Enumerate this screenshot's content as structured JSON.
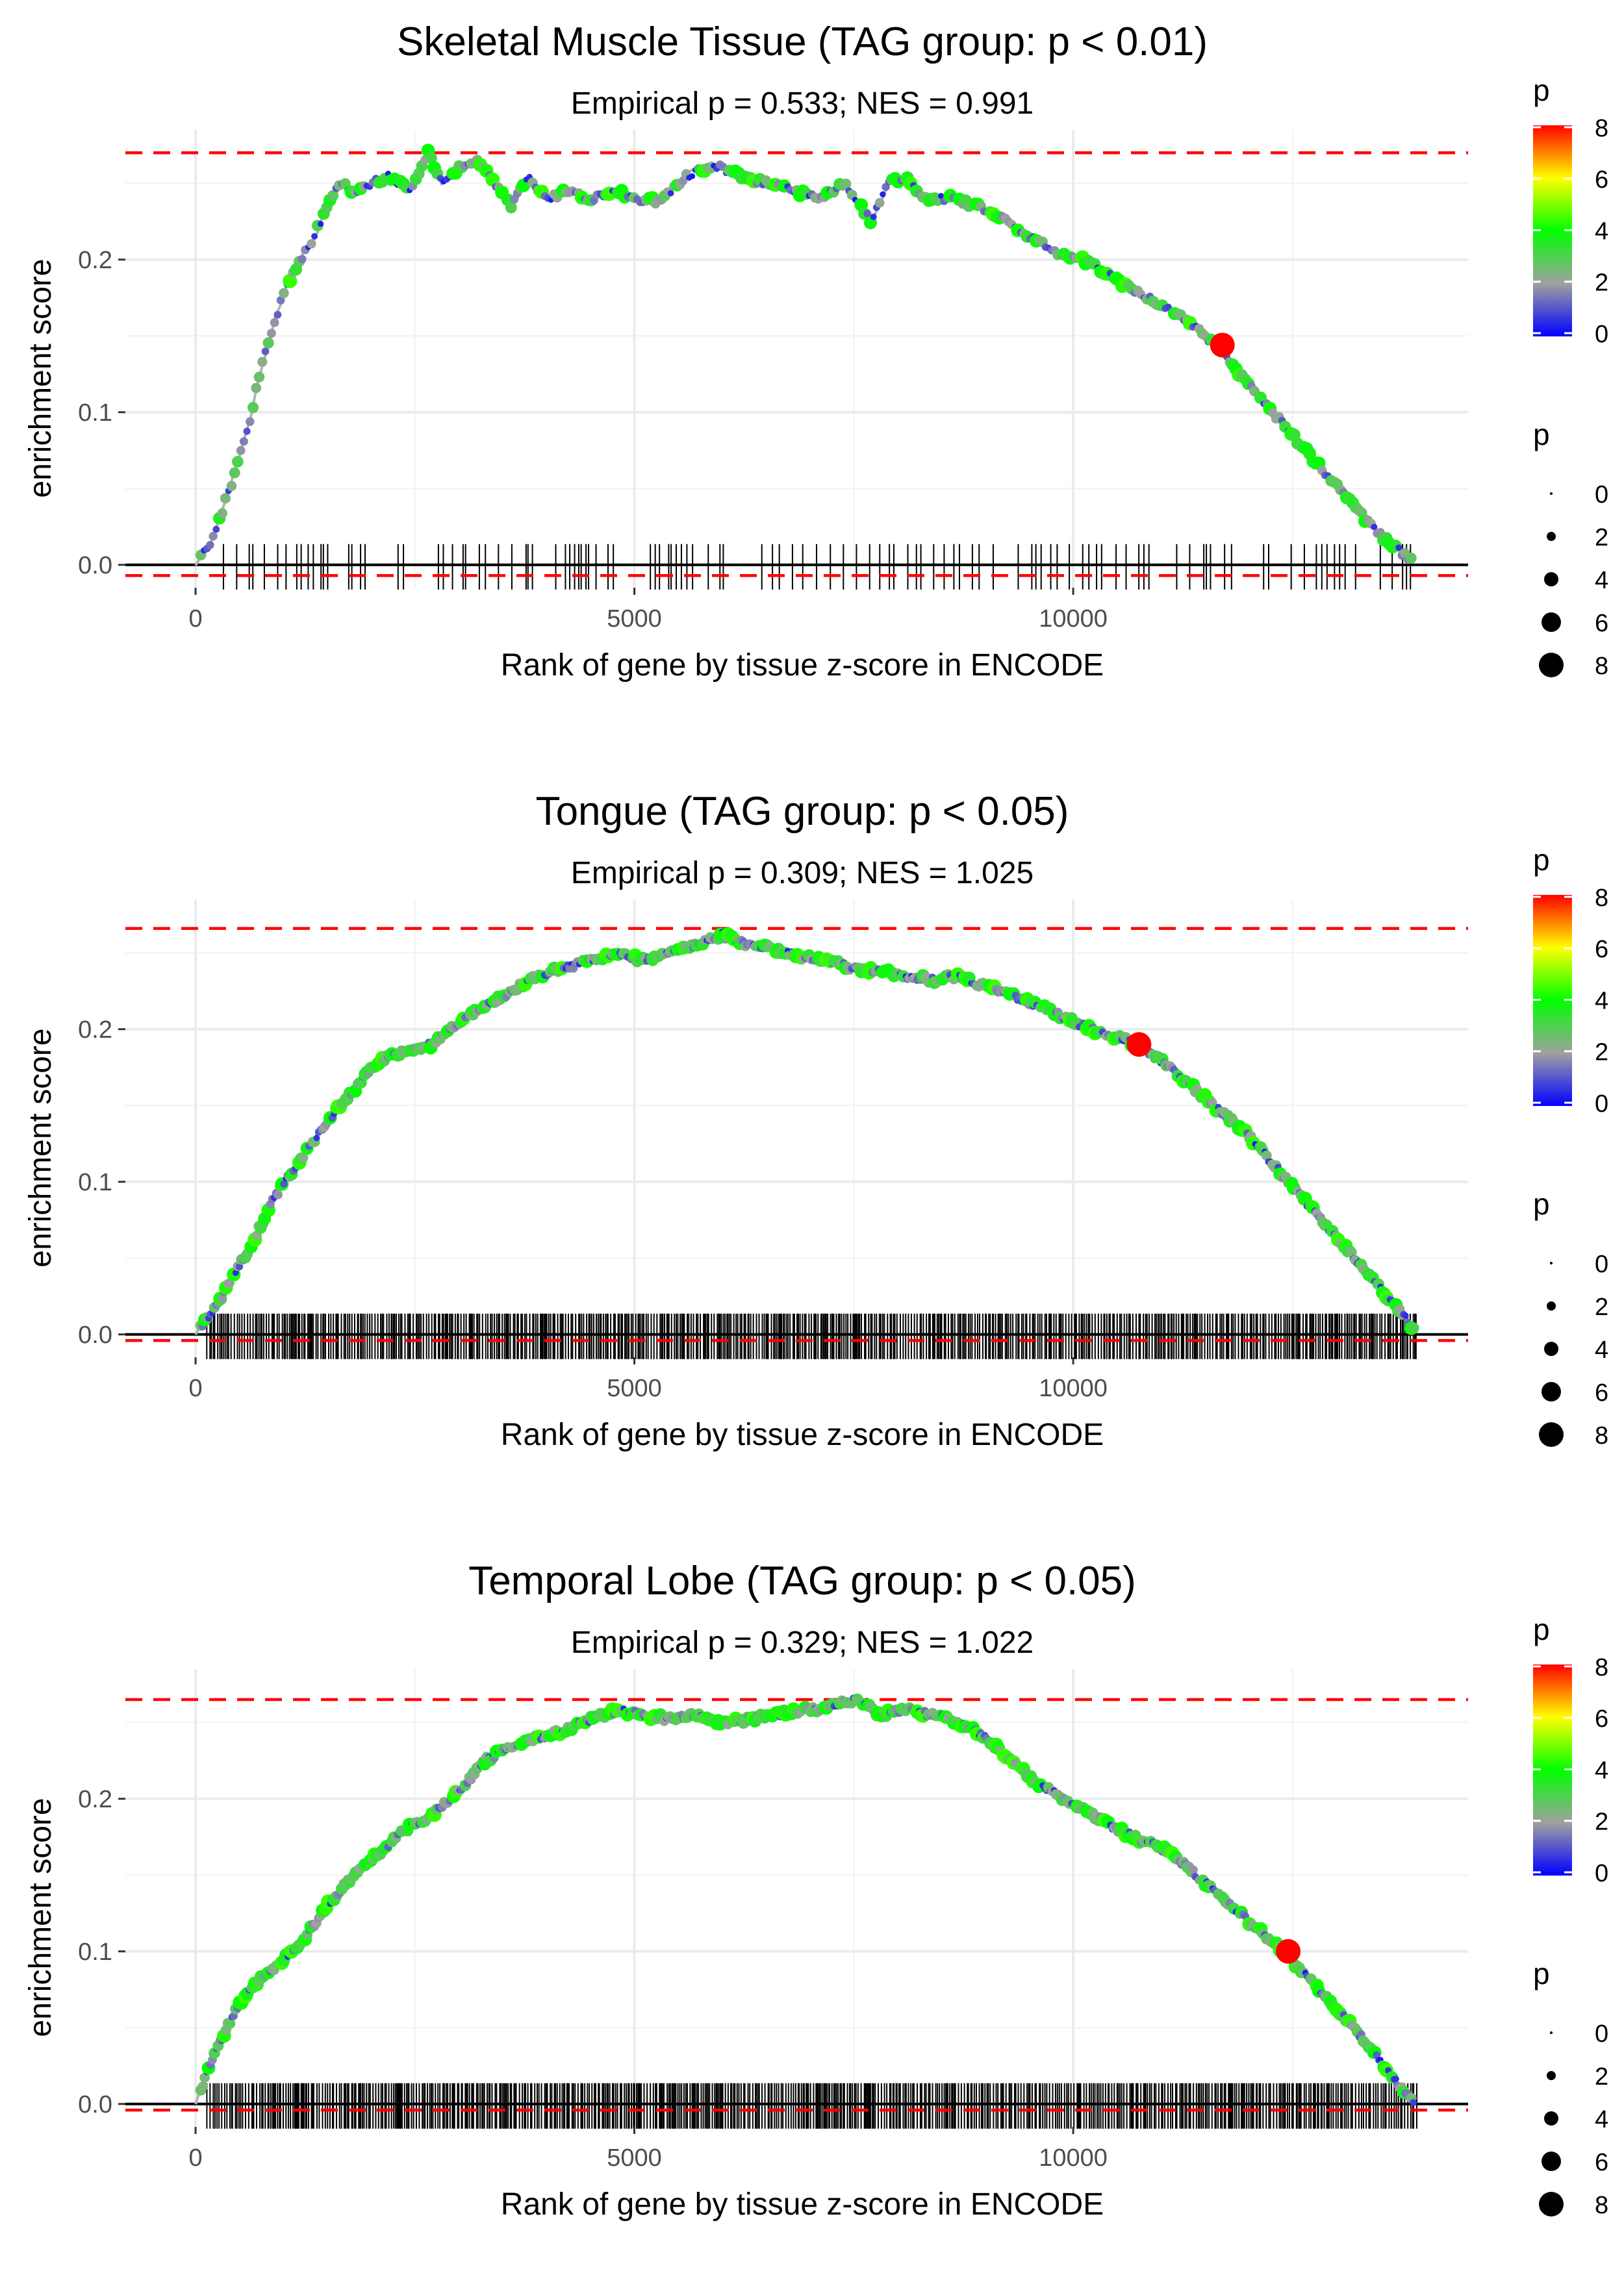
{
  "chart_data": [
    {
      "type": "line",
      "title": "Skeletal Muscle Tissue (TAG group: p < 0.01)",
      "subtitle": "Empirical p = 0.533; NES = 0.991",
      "xlabel": "Rank of gene by tissue z-score in ENCODE",
      "ylabel": "enrichment score",
      "xlim": [
        -800,
        14500
      ],
      "ylim": [
        -0.015,
        0.285
      ],
      "x_ticks": [
        0,
        5000,
        10000
      ],
      "x_tick_labels": [
        "0",
        "5000",
        "10000"
      ],
      "y_ticks": [
        0.0,
        0.1,
        0.2
      ],
      "y_tick_labels": [
        "0.0",
        "0.1",
        "0.2"
      ],
      "max_es_line": 0.27,
      "min_es_line": -0.007,
      "curve": {
        "x": [
          0,
          150,
          300,
          450,
          600,
          750,
          900,
          1050,
          1200,
          1350,
          1500,
          1650,
          1800,
          2000,
          2200,
          2450,
          2650,
          2800,
          3000,
          3200,
          3400,
          3600,
          3800,
          4000,
          4200,
          4500,
          4800,
          5000,
          5300,
          5600,
          5900,
          6200,
          6500,
          6800,
          7100,
          7400,
          7700,
          7900,
          8100,
          8300,
          8600,
          8900,
          9200,
          9500,
          9800,
          10100,
          10400,
          10700,
          11000,
          11300,
          11600,
          11900,
          12200,
          12500,
          12800,
          13100,
          13400,
          13700,
          13900
        ],
        "y": [
          0.0,
          0.012,
          0.035,
          0.06,
          0.09,
          0.13,
          0.16,
          0.185,
          0.2,
          0.215,
          0.235,
          0.25,
          0.245,
          0.25,
          0.255,
          0.245,
          0.27,
          0.25,
          0.26,
          0.265,
          0.25,
          0.235,
          0.255,
          0.238,
          0.245,
          0.24,
          0.245,
          0.24,
          0.238,
          0.255,
          0.262,
          0.255,
          0.25,
          0.245,
          0.24,
          0.25,
          0.225,
          0.25,
          0.255,
          0.24,
          0.24,
          0.235,
          0.228,
          0.215,
          0.205,
          0.2,
          0.19,
          0.18,
          0.17,
          0.16,
          0.145,
          0.125,
          0.105,
          0.085,
          0.065,
          0.045,
          0.025,
          0.01,
          0.0
        ]
      },
      "highlight_point": {
        "x": 11700,
        "y": 0.144,
        "p": 8
      },
      "hit_density": "sparse"
    },
    {
      "type": "line",
      "title": "Tongue (TAG group: p < 0.05)",
      "subtitle": "Empirical p = 0.309; NES = 1.025",
      "xlabel": "Rank of gene by tissue z-score in ENCODE",
      "ylabel": "enrichment score",
      "xlim": [
        -800,
        14500
      ],
      "ylim": [
        -0.015,
        0.285
      ],
      "x_ticks": [
        0,
        5000,
        10000
      ],
      "x_tick_labels": [
        "0",
        "5000",
        "10000"
      ],
      "y_ticks": [
        0.0,
        0.1,
        0.2
      ],
      "y_tick_labels": [
        "0.0",
        "0.1",
        "0.2"
      ],
      "max_es_line": 0.266,
      "min_es_line": -0.004,
      "curve": {
        "x": [
          0,
          300,
          600,
          900,
          1200,
          1500,
          1800,
          2100,
          2400,
          2700,
          3000,
          3300,
          3600,
          3900,
          4200,
          4500,
          4800,
          5100,
          5400,
          5700,
          6000,
          6300,
          6600,
          6900,
          7200,
          7500,
          7800,
          8100,
          8400,
          8700,
          9000,
          9300,
          9600,
          9900,
          10200,
          10500,
          10800,
          11100,
          11400,
          11700,
          12000,
          12300,
          12600,
          12900,
          13200,
          13500,
          13800,
          13900
        ],
        "y": [
          0.0,
          0.025,
          0.055,
          0.09,
          0.115,
          0.14,
          0.16,
          0.18,
          0.185,
          0.19,
          0.205,
          0.215,
          0.225,
          0.235,
          0.24,
          0.245,
          0.25,
          0.245,
          0.25,
          0.255,
          0.262,
          0.255,
          0.252,
          0.248,
          0.245,
          0.24,
          0.238,
          0.235,
          0.232,
          0.235,
          0.228,
          0.222,
          0.215,
          0.208,
          0.2,
          0.195,
          0.188,
          0.175,
          0.16,
          0.145,
          0.13,
          0.11,
          0.09,
          0.07,
          0.05,
          0.03,
          0.01,
          0.0
        ]
      },
      "highlight_point": {
        "x": 10750,
        "y": 0.19,
        "p": 8
      },
      "hit_density": "dense"
    },
    {
      "type": "line",
      "title": "Temporal Lobe (TAG group: p < 0.05)",
      "subtitle": "Empirical p = 0.329; NES = 1.022",
      "xlabel": "Rank of gene by tissue z-score in ENCODE",
      "ylabel": "enrichment score",
      "xlim": [
        -800,
        14500
      ],
      "ylim": [
        -0.015,
        0.285
      ],
      "x_ticks": [
        0,
        5000,
        10000
      ],
      "x_tick_labels": [
        "0",
        "5000",
        "10000"
      ],
      "y_ticks": [
        0.0,
        0.1,
        0.2
      ],
      "y_tick_labels": [
        "0.0",
        "0.1",
        "0.2"
      ],
      "max_es_line": 0.265,
      "min_es_line": -0.004,
      "curve": {
        "x": [
          0,
          200,
          400,
          600,
          800,
          1000,
          1200,
          1500,
          1800,
          2100,
          2400,
          2700,
          3000,
          3300,
          3600,
          3900,
          4200,
          4500,
          4800,
          5100,
          5400,
          5700,
          6000,
          6300,
          6600,
          6900,
          7200,
          7500,
          7800,
          8100,
          8400,
          8700,
          9000,
          9300,
          9600,
          9900,
          10200,
          10500,
          10800,
          11100,
          11400,
          11700,
          12000,
          12400,
          12800,
          13200,
          13600,
          13900
        ],
        "y": [
          0.0,
          0.03,
          0.055,
          0.075,
          0.085,
          0.095,
          0.105,
          0.13,
          0.15,
          0.165,
          0.18,
          0.19,
          0.205,
          0.225,
          0.235,
          0.24,
          0.245,
          0.252,
          0.258,
          0.255,
          0.252,
          0.255,
          0.25,
          0.252,
          0.255,
          0.258,
          0.26,
          0.265,
          0.255,
          0.258,
          0.255,
          0.25,
          0.24,
          0.225,
          0.21,
          0.2,
          0.19,
          0.18,
          0.172,
          0.165,
          0.15,
          0.135,
          0.12,
          0.1,
          0.075,
          0.05,
          0.02,
          0.0
        ]
      },
      "highlight_point": {
        "x": 12450,
        "y": 0.1,
        "p": 8
      },
      "hit_density": "dense"
    }
  ],
  "legend": {
    "color_title": "p",
    "color_ticks": [
      "8",
      "6",
      "4",
      "2",
      "0"
    ],
    "size_title": "p",
    "size_ticks": [
      "0",
      "2",
      "4",
      "6",
      "8"
    ],
    "colors": {
      "high": "#ff0000",
      "mid_high": "#ffff00",
      "mid": "#00ff00",
      "low_mid": "#a0a0a0",
      "low": "#0000ff"
    }
  }
}
